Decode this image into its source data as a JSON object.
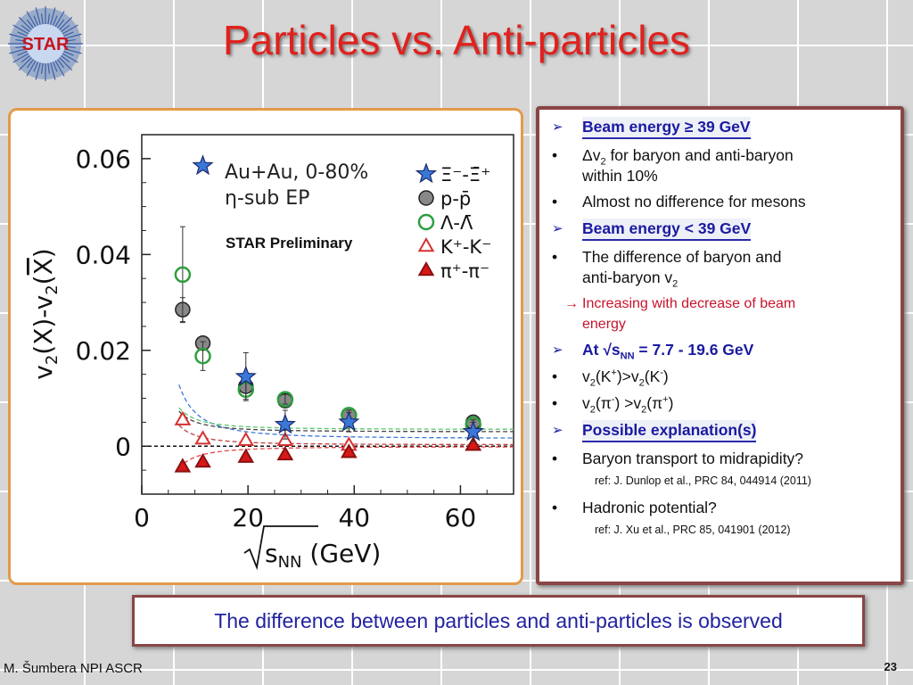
{
  "slide": {
    "title": "Particles vs. Anti-particles",
    "logo_text": "STAR",
    "footer_author": "M. Šumbera NPI ASCR",
    "page_number": "23",
    "conclusion": "The difference between particles and anti-particles is observed"
  },
  "bullets": {
    "b1_label": "Beam energy ≥ 39 GeV",
    "b2_delta": "Δv",
    "b2_sub": "2",
    "b2_rest": " for baryon and anti-baryon",
    "b2_cont": "within 10%",
    "b3": "Almost no difference for mesons",
    "b4_label": "Beam energy < 39 GeV",
    "b5_line1": "The difference of baryon and",
    "b5_line2": "anti-baryon v",
    "b5_sub": "2",
    "b6_arrow": "→",
    "b6_line1": "Increasing with decrease of beam",
    "b6_line2": "energy",
    "b7_prefix": "At √s",
    "b7_sub": "NN",
    "b7_rest": " = 7.7 - 19.6 GeV",
    "b8_a": "v",
    "b8_b": "2",
    "b8_c": "(K",
    "b8_d": "+",
    "b8_e": ")>v",
    "b8_f": "2",
    "b8_g": "(K",
    "b8_h": "-",
    "b8_i": ")",
    "b9_a": "v",
    "b9_b": "2",
    "b9_c": "(π",
    "b9_d": "-",
    "b9_e": ") >v",
    "b9_f": "2",
    "b9_g": "(π",
    "b9_h": "+",
    "b9_i": ")",
    "b10_label": "Possible explanation(s)",
    "b11": "Baryon transport to midrapidity?",
    "ref1": "ref: J. Dunlop et al., PRC 84, 044914 (2011)",
    "b12": "Hadronic potential?",
    "ref2": "ref: J. Xu et al., PRC 85, 041901 (2012)",
    "bullet_glyph": "•",
    "arrow_glyph": "➢"
  },
  "chart_data": {
    "type": "scatter",
    "xlabel": "√s_NN (GeV)",
    "ylabel": "v2(X)-v2(X̄)",
    "xlim": [
      0,
      70
    ],
    "ylim": [
      -0.01,
      0.065
    ],
    "x_ticks": [
      0,
      20,
      40,
      60
    ],
    "y_ticks": [
      0,
      0.02,
      0.04,
      0.06
    ],
    "x_tick_labels": [
      "0",
      "20",
      "40",
      "60"
    ],
    "y_tick_labels": [
      "0",
      "0.02",
      "0.04",
      "0.06"
    ],
    "annotation_system": "Au+Au,  0-80%",
    "annotation_method": "η-sub EP",
    "annotation_prelim": "STAR Preliminary",
    "zero_line": true,
    "colors": {
      "xi": "#3a78d8",
      "proton": "#888888",
      "lambda": "#2e9e3e",
      "kaon": "#d83030",
      "pion": "#d81818",
      "fit_xi": "#3a78d8",
      "fit_baryon": "#5ac86a",
      "fit_pion": "#e04848"
    },
    "series": [
      {
        "name": "Ξ⁻-Ξ̄⁺",
        "marker": "star",
        "x": [
          11.5,
          19.6,
          27,
          39,
          62.4
        ],
        "y": [
          0.0585,
          0.0145,
          0.0045,
          0.005,
          0.003
        ],
        "err": [
          0.0,
          0.005,
          0.003,
          0.002,
          0.002
        ]
      },
      {
        "name": "p-p̄",
        "marker": "filled-circle",
        "x": [
          7.7,
          11.5,
          19.6,
          27,
          39,
          62.4
        ],
        "y": [
          0.0285,
          0.0215,
          0.0125,
          0.0095,
          0.0065,
          0.005
        ],
        "err": [
          0.0025,
          0.001,
          0.001,
          0.0005,
          0.0005,
          0.0005
        ]
      },
      {
        "name": "Λ-Λ̄",
        "marker": "open-circle",
        "x": [
          7.7,
          11.5,
          19.6,
          27,
          39,
          62.4
        ],
        "y": [
          0.0358,
          0.0188,
          0.0118,
          0.0098,
          0.0065,
          0.0045
        ],
        "err": [
          0.01,
          0.003,
          0.002,
          0.001,
          0.001,
          0.001
        ]
      },
      {
        "name": "K⁺-K⁻",
        "marker": "open-triangle",
        "x": [
          7.7,
          11.5,
          19.6,
          27,
          39,
          62.4
        ],
        "y": [
          0.0055,
          0.0015,
          0.0012,
          0.0012,
          0.0002,
          0.0002
        ],
        "err": [
          0.001,
          0.0005,
          0.0005,
          0.0005,
          0.0005,
          0.0005
        ]
      },
      {
        "name": "π⁺-π⁻",
        "marker": "filled-triangle",
        "x": [
          7.7,
          11.5,
          19.6,
          27,
          39,
          62.4
        ],
        "y": [
          -0.0043,
          -0.0033,
          -0.0023,
          -0.0018,
          -0.0013,
          0.0002
        ],
        "err": [
          0.001,
          0.0005,
          0.0005,
          0.0005,
          0.0005,
          0.0005
        ]
      }
    ],
    "legend": {
      "xi": "Ξ⁻-Ξ̄⁺",
      "proton": "p-p̄",
      "lambda": "Λ-Λ̄",
      "kaon": "K⁺-K⁻",
      "pion": "π⁺-π⁻"
    },
    "legend_placement": "top-right"
  }
}
